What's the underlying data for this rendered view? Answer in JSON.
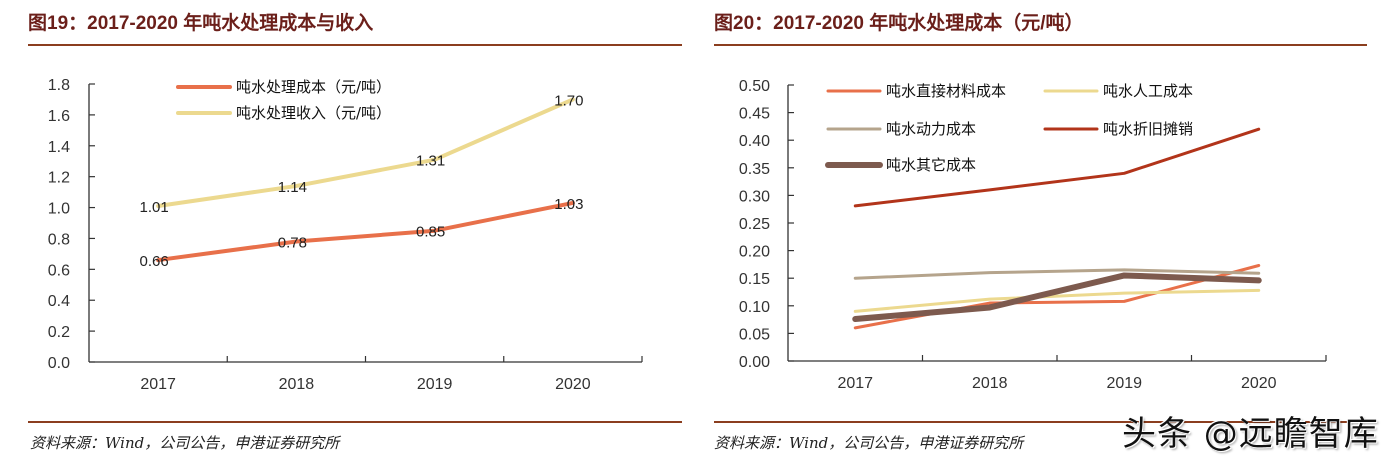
{
  "left_panel": {
    "title": "图19：2017-2020 年吨水处理成本与收入",
    "source": "资料来源：Wind，公司公告，申港证券研究所"
  },
  "right_panel": {
    "title": "图20：2017-2020 年吨水处理成本（元/吨）",
    "source": "资料来源：Wind，公司公告，申港证券研究所"
  },
  "watermark": "头条 @远瞻智库",
  "colors": {
    "title": "#6b1f1a",
    "rule": "#8b3e1f",
    "axis": "#333333"
  },
  "chart_data": [
    {
      "type": "line",
      "title": "2017-2020 年吨水处理成本与收入",
      "xlabel": "",
      "ylabel": "",
      "categories": [
        "2017",
        "2018",
        "2019",
        "2020"
      ],
      "ylim": [
        0,
        1.8
      ],
      "yticks": [
        "0.0",
        "0.2",
        "0.4",
        "0.6",
        "0.8",
        "1.0",
        "1.2",
        "1.4",
        "1.6",
        "1.8"
      ],
      "ytick_values": [
        0,
        0.2,
        0.4,
        0.6,
        0.8,
        1.0,
        1.2,
        1.4,
        1.6,
        1.8
      ],
      "grid": false,
      "legend_position": "top-center",
      "data_labels": true,
      "series": [
        {
          "name": "吨水处理成本（元/吨）",
          "color": "#e8704a",
          "width": 4,
          "values": [
            0.66,
            0.78,
            0.85,
            1.03
          ],
          "labels": [
            "0.66",
            "0.78",
            "0.85",
            "1.03"
          ]
        },
        {
          "name": "吨水处理收入（元/吨）",
          "color": "#ecd98f",
          "width": 4,
          "values": [
            1.01,
            1.14,
            1.31,
            1.7
          ],
          "labels": [
            "1.01",
            "1.14",
            "1.31",
            "1.70"
          ]
        }
      ]
    },
    {
      "type": "line",
      "title": "2017-2020 年吨水处理成本（元/吨）",
      "xlabel": "",
      "ylabel": "",
      "categories": [
        "2017",
        "2018",
        "2019",
        "2020"
      ],
      "ylim": [
        0,
        0.5
      ],
      "yticks": [
        "0.00",
        "0.05",
        "0.10",
        "0.15",
        "0.20",
        "0.25",
        "0.30",
        "0.35",
        "0.40",
        "0.45",
        "0.50"
      ],
      "ytick_values": [
        0,
        0.05,
        0.1,
        0.15,
        0.2,
        0.25,
        0.3,
        0.35,
        0.4,
        0.45,
        0.5
      ],
      "grid": false,
      "legend_position": "top-left",
      "data_labels": false,
      "series": [
        {
          "name": "吨水直接材料成本",
          "color": "#e8704a",
          "width": 3,
          "values": [
            0.06,
            0.105,
            0.108,
            0.173
          ]
        },
        {
          "name": "吨水人工成本",
          "color": "#ecd98f",
          "width": 3,
          "values": [
            0.09,
            0.112,
            0.123,
            0.128
          ]
        },
        {
          "name": "吨水动力成本",
          "color": "#b5a48c",
          "width": 3,
          "values": [
            0.15,
            0.16,
            0.165,
            0.159
          ]
        },
        {
          "name": "吨水折旧摊销",
          "color": "#b2341a",
          "width": 3,
          "values": [
            0.281,
            0.31,
            0.34,
            0.42
          ]
        },
        {
          "name": "吨水其它成本",
          "color": "#7d5a4e",
          "width": 6,
          "values": [
            0.076,
            0.097,
            0.155,
            0.146
          ]
        }
      ]
    }
  ]
}
